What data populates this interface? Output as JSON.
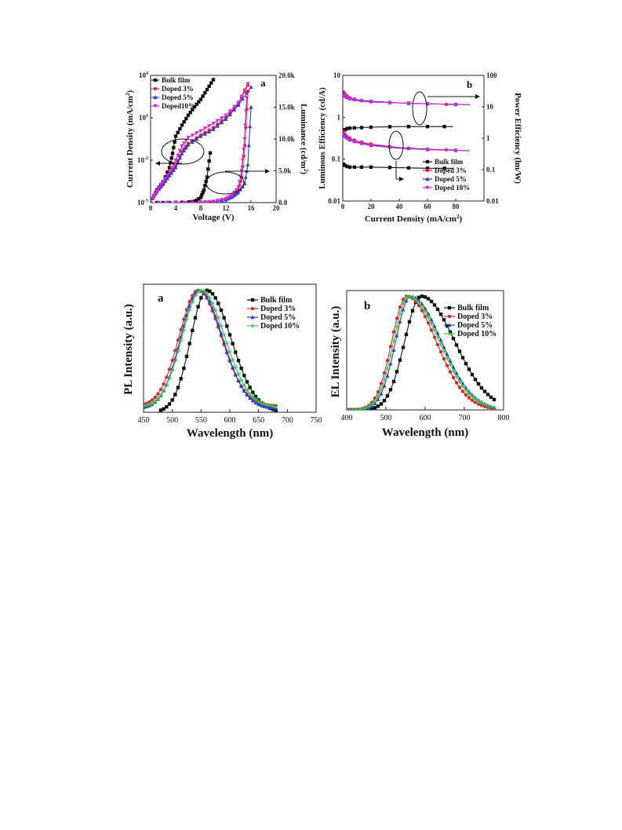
{
  "chart_data": [
    {
      "type": "line",
      "panel": "a",
      "xlabel": "Voltage (V)",
      "ylabel": "Current Density (mA/cm2)",
      "ylabel_base": "Current Density (mA/cm",
      "ylabel_sup": "2",
      "ylabel_tail": ")",
      "y2label": "Luminance (cd/m2)",
      "y2label_base": "Luminance (cd/m",
      "y2label_sup": "2",
      "y2label_tail": ")",
      "xlim": [
        0,
        20
      ],
      "ylim": [
        1e-05,
        10000
      ],
      "yscale": "log",
      "y2lim": [
        0,
        20000
      ],
      "xticks": [
        "0",
        "4",
        "8",
        "12",
        "16",
        "20"
      ],
      "yticks": [
        {
          "base": "10",
          "exp": "4"
        },
        {
          "base": "10",
          "exp": "1"
        },
        {
          "base": "10",
          "exp": "-2"
        },
        {
          "base": "10",
          "exp": "-5"
        }
      ],
      "y2ticks": [
        "20.0k",
        "15.0k",
        "10.0k",
        "5.0k",
        "0.0"
      ],
      "legend": [
        "Bulk film",
        "Doped 3%",
        "Doped 5%",
        "Doped10%"
      ],
      "legend_position": "top-left",
      "colors": [
        "#111111",
        "#e8202a",
        "#1f3fe0",
        "#e020e0"
      ],
      "markers": [
        "square",
        "circle",
        "triangle-up",
        "triangle-down"
      ],
      "series": [
        {
          "name": "Bulk film",
          "axis": "left",
          "x": [
            0.3,
            1,
            2,
            3,
            3.5,
            4,
            5,
            6,
            7,
            8,
            9,
            10
          ],
          "y": [
            2e-05,
            8e-05,
            0.0003,
            0.003,
            0.03,
            0.5,
            3,
            15,
            60,
            200,
            1000,
            5000
          ]
        },
        {
          "name": "Doped 3%",
          "axis": "left",
          "x": [
            0.3,
            1,
            2,
            3,
            4,
            5,
            6,
            8,
            10,
            12,
            14,
            15.5
          ],
          "y": [
            2e-05,
            6e-05,
            0.0002,
            0.001,
            0.004,
            0.04,
            0.15,
            0.6,
            2,
            10,
            100,
            2000
          ]
        },
        {
          "name": "Doped 5%",
          "axis": "left",
          "x": [
            0.3,
            1,
            2,
            3,
            4,
            5,
            6,
            8,
            10,
            12,
            14,
            16
          ],
          "y": [
            2e-05,
            6e-05,
            0.0002,
            0.0008,
            0.003,
            0.03,
            0.12,
            0.5,
            1.5,
            8,
            80,
            1500
          ]
        },
        {
          "name": "Doped10%",
          "axis": "left",
          "x": [
            0.3,
            1,
            2,
            3,
            4,
            5,
            6,
            8,
            10,
            12,
            14,
            15.5
          ],
          "y": [
            2e-05,
            7e-05,
            0.0003,
            0.0015,
            0.01,
            0.1,
            0.4,
            1.2,
            4,
            15,
            120,
            2500
          ]
        },
        {
          "name": "Bulk film",
          "axis": "right",
          "x": [
            0,
            3,
            6,
            7,
            8,
            8.5,
            9,
            9.5
          ],
          "y": [
            0,
            0,
            50,
            200,
            800,
            2000,
            4000,
            7800
          ]
        },
        {
          "name": "Doped 3%",
          "axis": "right",
          "x": [
            0,
            4,
            8,
            10,
            12,
            13,
            14,
            14.5,
            15,
            15.5
          ],
          "y": [
            0,
            0,
            30,
            150,
            500,
            1000,
            2000,
            4000,
            9000,
            17500
          ]
        },
        {
          "name": "Doped 5%",
          "axis": "right",
          "x": [
            0,
            4,
            8,
            10,
            12,
            13,
            14,
            15,
            15.5,
            16
          ],
          "y": [
            0,
            0,
            30,
            150,
            450,
            900,
            1600,
            3000,
            6000,
            15000
          ]
        },
        {
          "name": "Doped10%",
          "axis": "right",
          "x": [
            0,
            4,
            8,
            10,
            12,
            13,
            14,
            14.5,
            15,
            15.3
          ],
          "y": [
            0,
            0,
            40,
            180,
            600,
            1200,
            2400,
            5000,
            10000,
            16500
          ]
        }
      ]
    },
    {
      "type": "line",
      "panel": "b",
      "xlabel": "Current Density (mA/cm2)",
      "xlabel_base": "Current Density (mA/cm",
      "xlabel_sup": "2",
      "xlabel_tail": ")",
      "ylabel": "Luminous Efficiency (cd/A)",
      "y2label": "Power Efficiency (lm/W)",
      "xlim": [
        0,
        100
      ],
      "ylim": [
        0.01,
        10
      ],
      "yscale": "log",
      "y2lim": [
        0.01,
        100
      ],
      "y2scale": "log",
      "xticks": [
        "0",
        "20",
        "40",
        "60",
        "80"
      ],
      "yticks": [
        "10",
        "1",
        "0.1",
        "0.01"
      ],
      "y2ticks": [
        "100",
        "10",
        "1",
        "0.1",
        "0.01"
      ],
      "legend": [
        "Bulk film",
        "Doped 3%",
        "Doped 5%",
        "Doped 10%"
      ],
      "legend_position": "bottom-right",
      "colors": [
        "#111111",
        "#e8202a",
        "#1f3fe0",
        "#e020e0"
      ],
      "markers": [
        "square",
        "circle",
        "triangle-up",
        "triangle-down"
      ],
      "series": [
        {
          "name": "Bulk film",
          "axis": "left",
          "x": [
            0.5,
            2,
            5,
            10,
            20,
            40,
            60,
            78
          ],
          "y": [
            0.45,
            0.53,
            0.55,
            0.56,
            0.58,
            0.6,
            0.6,
            0.6
          ]
        },
        {
          "name": "Doped 3%",
          "axis": "left",
          "x": [
            0.5,
            2,
            5,
            10,
            20,
            40,
            60,
            80
          ],
          "y": [
            4.0,
            3.4,
            2.9,
            2.6,
            2.4,
            2.2,
            2.1,
            2.0
          ]
        },
        {
          "name": "Doped 5%",
          "axis": "left",
          "x": [
            0.5,
            2,
            5,
            10,
            20,
            40,
            60,
            90
          ],
          "y": [
            3.6,
            3.1,
            2.8,
            2.6,
            2.4,
            2.2,
            2.1,
            2.0
          ]
        },
        {
          "name": "Doped 10%",
          "axis": "left",
          "x": [
            0.5,
            2,
            5,
            10,
            20,
            40,
            60,
            90
          ],
          "y": [
            3.3,
            3.0,
            2.7,
            2.5,
            2.3,
            2.2,
            2.1,
            2.0
          ]
        },
        {
          "name": "Bulk film",
          "axis": "right",
          "x": [
            0.5,
            2,
            5,
            10,
            20,
            40,
            60,
            78
          ],
          "y": [
            0.15,
            0.13,
            0.12,
            0.12,
            0.12,
            0.115,
            0.11,
            0.11
          ]
        },
        {
          "name": "Doped 3%",
          "axis": "right",
          "x": [
            0.5,
            2,
            5,
            10,
            20,
            40,
            60,
            80
          ],
          "y": [
            1.6,
            1.2,
            1.0,
            0.8,
            0.65,
            0.5,
            0.45,
            0.42
          ]
        },
        {
          "name": "Doped 5%",
          "axis": "right",
          "x": [
            0.5,
            2,
            5,
            10,
            20,
            40,
            60,
            90
          ],
          "y": [
            1.4,
            1.1,
            0.9,
            0.75,
            0.6,
            0.5,
            0.44,
            0.4
          ]
        },
        {
          "name": "Doped 10%",
          "axis": "right",
          "x": [
            0.5,
            2,
            5,
            10,
            20,
            40,
            60,
            90
          ],
          "y": [
            1.3,
            1.0,
            0.85,
            0.72,
            0.58,
            0.48,
            0.43,
            0.4
          ]
        }
      ]
    },
    {
      "type": "line",
      "panel": "a",
      "xlabel": "Wavelength (nm)",
      "ylabel": "PL Intensity (a.u.)",
      "xlim": [
        450,
        750
      ],
      "ylim": [
        0,
        1.05
      ],
      "xticks": [
        "450",
        "500",
        "550",
        "600",
        "650",
        "700",
        "750"
      ],
      "legend": [
        "Bulk film",
        "Doped 3%",
        "Doped 5%",
        "Doped 10%"
      ],
      "legend_position": "top-right",
      "colors": [
        "#111111",
        "#e8202a",
        "#1f3fe0",
        "#2ecc40"
      ],
      "markers": [
        "square",
        "circle",
        "triangle-up",
        "plus"
      ],
      "series": [
        {
          "name": "Bulk film",
          "peak": 560,
          "sigma_left": 28,
          "sigma_right": 42,
          "base": 0.0,
          "x_start": 480,
          "x_end": 680
        },
        {
          "name": "Doped 3%",
          "peak": 545,
          "sigma_left": 33,
          "sigma_right": 40,
          "base": 0.05,
          "x_start": 450,
          "x_end": 680
        },
        {
          "name": "Doped 5%",
          "peak": 547,
          "sigma_left": 32,
          "sigma_right": 40,
          "base": 0.03,
          "x_start": 450,
          "x_end": 680
        },
        {
          "name": "Doped 10%",
          "peak": 550,
          "sigma_left": 33,
          "sigma_right": 41,
          "base": 0.04,
          "x_start": 450,
          "x_end": 680
        }
      ]
    },
    {
      "type": "line",
      "panel": "b",
      "xlabel": "Wavelength (nm)",
      "ylabel": "EL Intensity (a.u.)",
      "xlim": [
        400,
        800
      ],
      "ylim": [
        0,
        1.05
      ],
      "xticks": [
        "400",
        "500",
        "600",
        "700",
        "800"
      ],
      "legend": [
        "Bulk film",
        "Doped 3%",
        "Doped 5%",
        "Doped 10%"
      ],
      "legend_position": "top-right",
      "colors": [
        "#111111",
        "#e8202a",
        "#1f3fe0",
        "#2ecc40"
      ],
      "markers": [
        "square",
        "circle",
        "triangle-up",
        "plus"
      ],
      "series": [
        {
          "name": "Bulk film",
          "peak": 590,
          "sigma_left": 42,
          "sigma_right": 85,
          "base": 0.0,
          "x_start": 400,
          "x_end": 780
        },
        {
          "name": "Doped 3%",
          "peak": 553,
          "sigma_left": 38,
          "sigma_right": 75,
          "base": 0.0,
          "x_start": 400,
          "x_end": 780
        },
        {
          "name": "Doped 5%",
          "peak": 563,
          "sigma_left": 38,
          "sigma_right": 78,
          "base": 0.0,
          "x_start": 400,
          "x_end": 780
        },
        {
          "name": "Doped 10%",
          "peak": 558,
          "sigma_left": 38,
          "sigma_right": 78,
          "base": 0.0,
          "x_start": 400,
          "x_end": 780
        }
      ]
    }
  ]
}
